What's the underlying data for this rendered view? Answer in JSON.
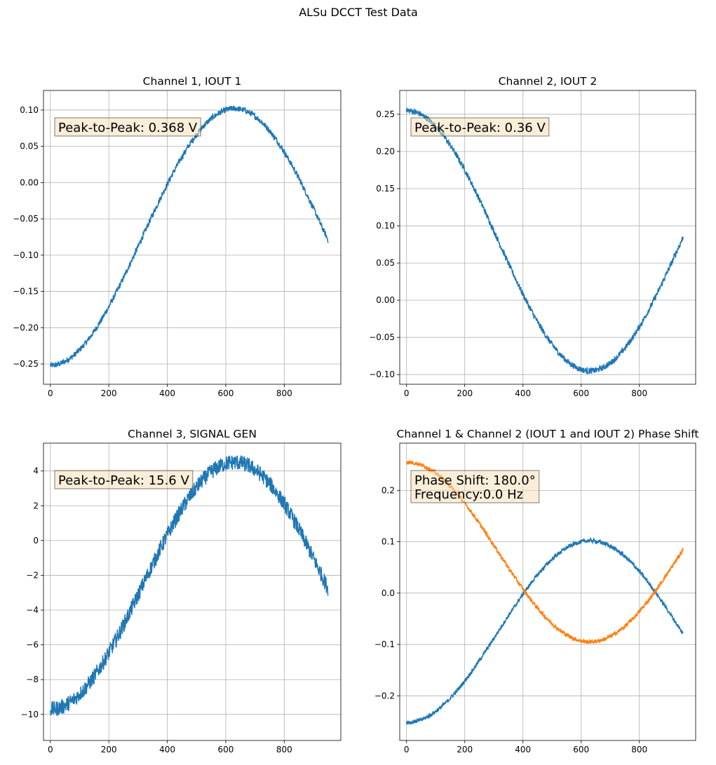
{
  "figure": {
    "suptitle": "ALSu DCCT Test Data",
    "colors": {
      "series1": "#1f77b4",
      "series2": "#ff7f0e",
      "grid": "#b0b0b0",
      "box_face": "#f5deb3",
      "box_edge": "#000000"
    }
  },
  "chart_data": [
    {
      "type": "line",
      "title": "Channel 1, IOUT 1",
      "xlabel": "",
      "ylabel": "",
      "xlim": [
        -23.5,
        993.5
      ],
      "ylim": [
        -0.278,
        0.127
      ],
      "xticks": [
        0,
        200,
        400,
        600,
        800
      ],
      "xtick_labels": [
        "0",
        "200",
        "400",
        "600",
        "800"
      ],
      "yticks": [
        -0.25,
        -0.2,
        -0.15,
        -0.1,
        -0.05,
        0.0,
        0.05,
        0.1
      ],
      "ytick_labels": [
        "−0.25",
        "−0.20",
        "−0.15",
        "−0.10",
        "−0.05",
        "0.00",
        "0.05",
        "0.10"
      ],
      "grid": true,
      "annotation": "Peak-to-Peak: 0.368 V",
      "annotation_lines": [
        "Peak-to-Peak: 0.368 V"
      ],
      "series": [
        {
          "color": "#1f77b4",
          "amplitude": 0.177,
          "offset": -0.075,
          "phase_deg": 90,
          "noise": 0.004,
          "x": [
            0,
            950
          ],
          "points": 950,
          "period": 1260
        }
      ]
    },
    {
      "type": "line",
      "title": "Channel 2, IOUT 2",
      "xlabel": "",
      "ylabel": "",
      "xlim": [
        -23.5,
        993.5
      ],
      "ylim": [
        -0.113,
        0.282
      ],
      "xticks": [
        0,
        200,
        400,
        600,
        800
      ],
      "xtick_labels": [
        "0",
        "200",
        "400",
        "600",
        "800"
      ],
      "yticks": [
        -0.1,
        -0.05,
        0.0,
        0.05,
        0.1,
        0.15,
        0.2,
        0.25
      ],
      "ytick_labels": [
        "−0.10",
        "−0.05",
        "0.00",
        "0.05",
        "0.10",
        "0.15",
        "0.20",
        "0.25"
      ],
      "grid": true,
      "annotation": "Peak-to-Peak: 0.36 V",
      "annotation_lines": [
        "Peak-to-Peak: 0.36 V"
      ],
      "series": [
        {
          "color": "#1f77b4",
          "amplitude": 0.175,
          "offset": 0.08,
          "phase_deg": -90,
          "noise": 0.004,
          "x": [
            0,
            950
          ],
          "points": 950,
          "period": 1260
        }
      ]
    },
    {
      "type": "line",
      "title": "Channel 3, SIGNAL GEN",
      "xlabel": "",
      "ylabel": "",
      "xlim": [
        -23.5,
        993.5
      ],
      "ylim": [
        -11.5,
        5.6
      ],
      "xticks": [
        0,
        200,
        400,
        600,
        800
      ],
      "xtick_labels": [
        "0",
        "200",
        "400",
        "600",
        "800"
      ],
      "yticks": [
        -10,
        -8,
        -6,
        -4,
        -2,
        0,
        2,
        4
      ],
      "ytick_labels": [
        "−10",
        "−8",
        "−6",
        "−4",
        "−2",
        "0",
        "2",
        "4"
      ],
      "grid": true,
      "annotation": "Peak-to-Peak: 15.6 V",
      "annotation_lines": [
        "Peak-to-Peak: 15.6 V"
      ],
      "series": [
        {
          "color": "#1f77b4",
          "amplitude": 7.1,
          "offset": -2.6,
          "phase_deg": 90,
          "noise": 0.45,
          "x": [
            0,
            950
          ],
          "points": 950,
          "period": 1260
        }
      ]
    },
    {
      "type": "line",
      "title": "Channel 1 & Channel 2 (IOUT 1 and IOUT 2) Phase Shift",
      "xlabel": "",
      "ylabel": "",
      "xlim": [
        -23.5,
        993.5
      ],
      "ylim": [
        -0.287,
        0.292
      ],
      "xticks": [
        0,
        200,
        400,
        600,
        800
      ],
      "xtick_labels": [
        "0",
        "200",
        "400",
        "600",
        "800"
      ],
      "yticks": [
        -0.2,
        -0.1,
        0.0,
        0.1,
        0.2
      ],
      "ytick_labels": [
        "−0.2",
        "−0.1",
        "0.0",
        "0.1",
        "0.2"
      ],
      "grid": true,
      "annotation": "Phase Shift: 180.0°\nFrequency:0.0 Hz",
      "annotation_lines": [
        "Phase Shift: 180.0°",
        "Frequency:0.0 Hz"
      ],
      "series": [
        {
          "color": "#1f77b4",
          "amplitude": 0.177,
          "offset": -0.075,
          "phase_deg": 90,
          "noise": 0.004,
          "x": [
            0,
            950
          ],
          "points": 950,
          "period": 1260
        },
        {
          "color": "#ff7f0e",
          "amplitude": 0.175,
          "offset": 0.08,
          "phase_deg": -90,
          "noise": 0.004,
          "x": [
            0,
            950
          ],
          "points": 950,
          "period": 1260
        }
      ]
    }
  ]
}
